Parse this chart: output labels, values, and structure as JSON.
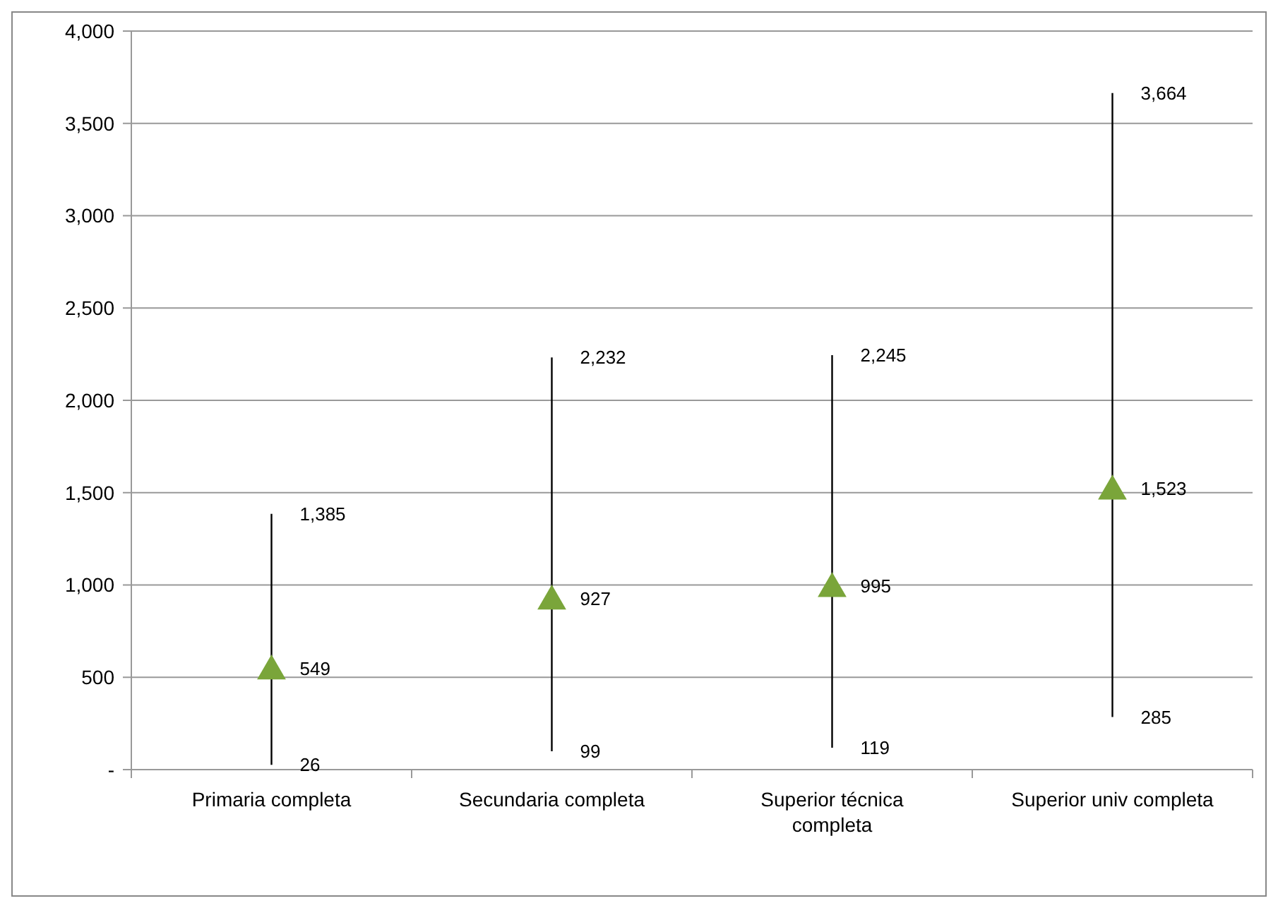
{
  "chart_data": {
    "type": "scatter",
    "categories": [
      "Primaria completa",
      "Secundaria completa",
      "Superior técnica completa",
      "Superior univ completa"
    ],
    "series": [
      {
        "color": "#7aa53a",
        "values": [
          549,
          927,
          995,
          1523
        ],
        "value_labels": [
          "549",
          "927",
          "995",
          "1,523"
        ],
        "errors": [
          [
            26,
            1385
          ],
          [
            99,
            2232
          ],
          [
            119,
            2245
          ],
          [
            285,
            3664
          ]
        ]
      }
    ],
    "marker": "triangle",
    "grid": "y",
    "annotations": [
      {
        "text": "1,385",
        "x": "Primaria completa",
        "y": 1385
      },
      {
        "text": "26",
        "x": "Primaria completa",
        "y": 26
      },
      {
        "text": "2,232",
        "x": "Secundaria completa",
        "y": 2232
      },
      {
        "text": "99",
        "x": "Secundaria completa",
        "y": 99
      },
      {
        "text": "2,245",
        "x": "Superior técnica completa",
        "y": 2245
      },
      {
        "text": "119",
        "x": "Superior técnica completa",
        "y": 119
      },
      {
        "text": "3,664",
        "x": "Superior univ completa",
        "y": 3664
      },
      {
        "text": "285",
        "x": "Superior univ completa",
        "y": 285
      }
    ],
    "ylim": [
      0,
      4000
    ],
    "yticks": [
      {
        "value": 0,
        "label": "-"
      },
      {
        "value": 500,
        "label": "500"
      },
      {
        "value": 1000,
        "label": "1,000"
      },
      {
        "value": 1500,
        "label": "1,500"
      },
      {
        "value": 2000,
        "label": "2,000"
      },
      {
        "value": 2500,
        "label": "2,500"
      },
      {
        "value": 3000,
        "label": "3,000"
      },
      {
        "value": 3500,
        "label": "3,500"
      },
      {
        "value": 4000,
        "label": "4,000"
      }
    ]
  }
}
